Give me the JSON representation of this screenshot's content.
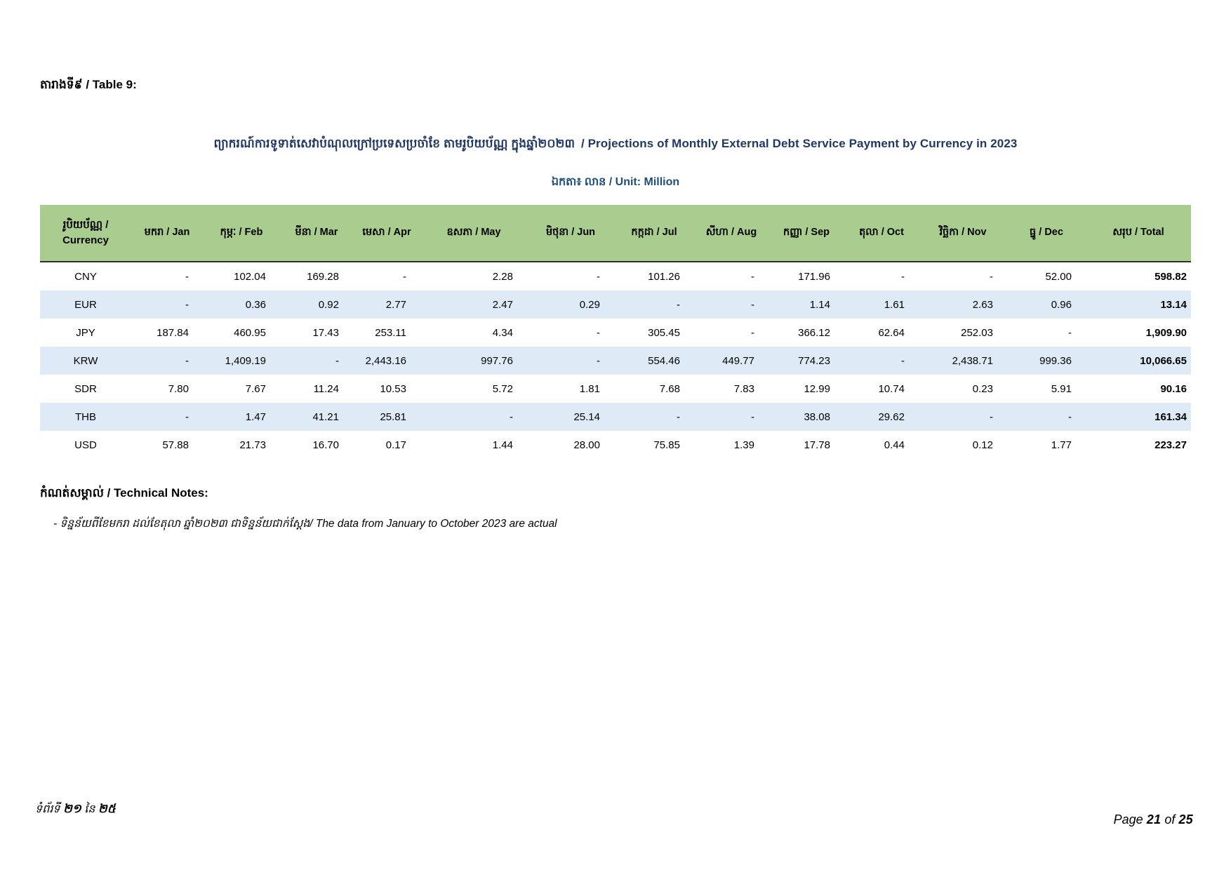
{
  "page": {
    "table_label": "តារាងទី៩ / Table 9:"
  },
  "title": {
    "khmer": "ព្យាករណ៍ការទូទាត់សេវាបំណុលក្រៅប្រទេសប្រចាំខែ តាមរូបិយប័ណ្ណ ក្នុងឆ្នាំ២០២៣",
    "english": "/ Projections of Monthly External Debt Service Payment by Currency in 2023",
    "unit_line": "ឯកតា៖ លាន / Unit: Million"
  },
  "colors": {
    "header_green": "#A9CD8E",
    "row_alt_blue": "#DEEAF6",
    "title_navy": "#1F3864",
    "unit_navy": "#1F4E79",
    "header_border": "#2F2F2F"
  },
  "chart_data": {
    "type": "table",
    "title": "Projections of Monthly External Debt Service Payment by Currency in 2023",
    "unit": "Million",
    "currency_header": [
      "រូបិយប័ណ្ណ /",
      "Currency"
    ],
    "month_headers": [
      "មករា / Jan",
      "កុម្ភៈ / Feb",
      "មីនា / Mar",
      "មេសា / Apr",
      "ឧសភា / May",
      "មិថុនា / Jun",
      "កក្កដា / Jul",
      "សីហា / Aug",
      "កញ្ញា / Sep",
      "តុលា / Oct",
      "វិច្ឆិកា / Nov",
      "ធ្នូ / Dec"
    ],
    "total_header": "សរុប / Total",
    "rows": [
      {
        "currency": "CNY",
        "values": [
          "-",
          "102.04",
          "169.28",
          "-",
          "2.28",
          "-",
          "101.26",
          "-",
          "171.96",
          "-",
          "-",
          "52.00"
        ],
        "total": "598.82"
      },
      {
        "currency": "EUR",
        "values": [
          "-",
          "0.36",
          "0.92",
          "2.77",
          "2.47",
          "0.29",
          "-",
          "-",
          "1.14",
          "1.61",
          "2.63",
          "0.96"
        ],
        "total": "13.14"
      },
      {
        "currency": "JPY",
        "values": [
          "187.84",
          "460.95",
          "17.43",
          "253.11",
          "4.34",
          "-",
          "305.45",
          "-",
          "366.12",
          "62.64",
          "252.03",
          "-"
        ],
        "total": "1,909.90"
      },
      {
        "currency": "KRW",
        "values": [
          "-",
          "1,409.19",
          "-",
          "2,443.16",
          "997.76",
          "-",
          "554.46",
          "449.77",
          "774.23",
          "-",
          "2,438.71",
          "999.36"
        ],
        "total": "10,066.65"
      },
      {
        "currency": "SDR",
        "values": [
          "7.80",
          "7.67",
          "11.24",
          "10.53",
          "5.72",
          "1.81",
          "7.68",
          "7.83",
          "12.99",
          "10.74",
          "0.23",
          "5.91"
        ],
        "total": "90.16"
      },
      {
        "currency": "THB",
        "values": [
          "-",
          "1.47",
          "41.21",
          "25.81",
          "-",
          "25.14",
          "-",
          "-",
          "38.08",
          "29.62",
          "-",
          "-"
        ],
        "total": "161.34"
      },
      {
        "currency": "USD",
        "values": [
          "57.88",
          "21.73",
          "16.70",
          "0.17",
          "1.44",
          "28.00",
          "75.85",
          "1.39",
          "17.78",
          "0.44",
          "0.12",
          "1.77"
        ],
        "total": "223.27"
      }
    ]
  },
  "notes": {
    "heading": "កំណត់សម្គាល់ / Technical Notes:",
    "items": [
      "- ទិន្នន័យពីខែមករា ដល់ខែតុលា ឆ្នាំ២០២៣ ជាទិន្នន័យជាក់ស្តែង/ The data from January to October 2023 are actual"
    ]
  },
  "footer": {
    "khmer": {
      "prefix": "ទំព័រទី",
      "page": "២១",
      "of": "នៃ",
      "total": "២៥"
    },
    "english": {
      "prefix": "Page",
      "page": "21",
      "of": "of",
      "total": "25"
    }
  }
}
